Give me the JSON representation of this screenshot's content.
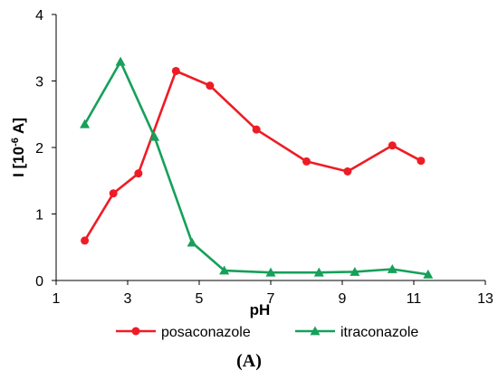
{
  "chart_data": {
    "type": "line",
    "title": "",
    "xlabel": "pH",
    "ylabel": "I [10-6 A]",
    "ylabel_parts": {
      "prefix": "I [10",
      "superscript": "-6",
      "suffix": " A]"
    },
    "xlim": [
      1,
      13
    ],
    "ylim": [
      0,
      4
    ],
    "xticks": [
      1,
      3,
      5,
      7,
      9,
      11,
      13
    ],
    "yticks": [
      0,
      1,
      2,
      3,
      4
    ],
    "grid": false,
    "legend_position": "bottom",
    "panel_label": "(A)",
    "series": [
      {
        "name": "posaconazole",
        "color": "#ee1c25",
        "marker": "circle",
        "x": [
          1.8,
          2.6,
          3.3,
          4.35,
          5.3,
          6.6,
          8.0,
          9.15,
          10.4,
          11.2
        ],
        "y": [
          0.6,
          1.31,
          1.61,
          3.15,
          2.93,
          2.27,
          1.79,
          1.64,
          2.03,
          1.8
        ]
      },
      {
        "name": "itraconazole",
        "color": "#16a05a",
        "marker": "triangle",
        "x": [
          1.8,
          2.8,
          3.75,
          4.8,
          5.7,
          7.0,
          8.35,
          9.35,
          10.4,
          11.4
        ],
        "y": [
          2.35,
          3.29,
          2.16,
          0.57,
          0.15,
          0.12,
          0.12,
          0.13,
          0.17,
          0.09
        ]
      }
    ]
  }
}
